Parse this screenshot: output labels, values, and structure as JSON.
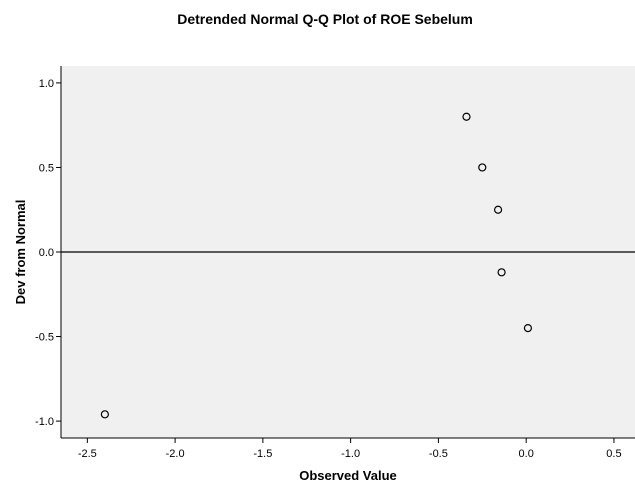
{
  "chart_data": {
    "type": "scatter",
    "title": "Detrended Normal Q-Q Plot of ROE Sebelum",
    "xlabel": "Observed Value",
    "ylabel": "Dev from Normal",
    "xlim": [
      -2.65,
      0.62
    ],
    "ylim": [
      -1.1,
      1.1
    ],
    "x_ticks": [
      -2.5,
      -2.0,
      -1.5,
      -1.0,
      -0.5,
      0.0,
      0.5
    ],
    "x_tick_labels": [
      "-2.5",
      "-2.0",
      "-1.5",
      "-1.0",
      "-0.5",
      "0.0",
      "0.5"
    ],
    "y_ticks": [
      1.0,
      0.5,
      0.0,
      -0.5,
      -1.0
    ],
    "y_tick_labels": [
      "1.0",
      "0.5",
      "0.0",
      "-0.5",
      "-1.0"
    ],
    "reference_line_y": 0.0,
    "grid": false,
    "legend": "none",
    "colors": {
      "plot_background": "#f0f0f0",
      "marker_stroke": "#000000",
      "marker_fill": "#f0f0f0",
      "axis": "#000000"
    },
    "points": [
      {
        "x": -2.4,
        "y": -0.96
      },
      {
        "x": -0.34,
        "y": 0.8
      },
      {
        "x": -0.25,
        "y": 0.5
      },
      {
        "x": -0.16,
        "y": 0.25
      },
      {
        "x": -0.14,
        "y": -0.12
      },
      {
        "x": 0.01,
        "y": -0.45
      }
    ]
  }
}
